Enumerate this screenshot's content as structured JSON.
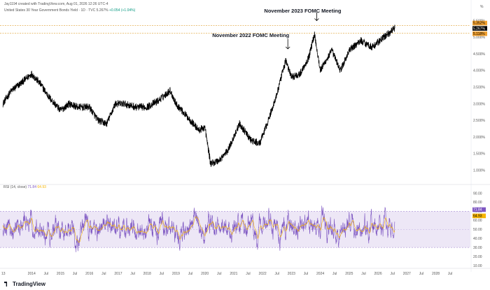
{
  "header": {
    "credit": "Jay1194 created with TradingView.com, Aug 01, 2026 12:26 UTC-4",
    "symbol_line": "United States 30 Year Government Bonds Yield · 1D · TVC",
    "price": "5.267%",
    "change": "+0.054 (+1.04%)"
  },
  "branding": {
    "logo_text": "TradingView",
    "logo_icon": "tradingview-logo-icon"
  },
  "colors": {
    "price_line": "#000000",
    "rsi_line": "#7e57c2",
    "rsi_ma_line": "#f7b500",
    "rsi_band": "#ede7f6",
    "last_price_label": "#000000",
    "level_label_orange": "#f0a030",
    "dashed_level": "#e0a030"
  },
  "chart_data": [
    {
      "type": "line",
      "title": "",
      "annotations": [
        {
          "text": "November 2023 FOMC Meeting",
          "x": "2023-11-01"
        },
        {
          "text": "November 2022 FOMC Meeting",
          "x": "2022-11-01"
        }
      ],
      "y_axis_unit": "%",
      "y_ticks": [
        "5.500%",
        "5.000%",
        "4.500%",
        "4.000%",
        "3.500%",
        "3.000%",
        "2.500%",
        "2.000%",
        "1.500%",
        "1.000%"
      ],
      "ylim": [
        0.7,
        5.7
      ],
      "levels": [
        {
          "label": "5.267%",
          "value": 5.267,
          "style": "last-price"
        },
        {
          "label": "5.352%",
          "value": 5.352,
          "style": "dashed"
        },
        {
          "label": "5.118%",
          "value": 5.118,
          "style": "dashed"
        }
      ],
      "series": [
        {
          "x": [
            2013.0,
            2013.3,
            2013.6,
            2014.0,
            2014.3,
            2014.6,
            2015.0,
            2015.3,
            2015.6,
            2016.0,
            2016.3,
            2016.6,
            2016.9,
            2017.2,
            2017.6,
            2018.0,
            2018.4,
            2018.8,
            2019.0,
            2019.4,
            2019.8,
            2020.0,
            2020.2,
            2020.5,
            2020.8,
            2021.2,
            2021.6,
            2021.9,
            2022.2,
            2022.5,
            2022.8,
            2023.0,
            2023.3,
            2023.6,
            2023.8,
            2024.0,
            2024.4,
            2024.7,
            2025.0,
            2025.4,
            2025.8,
            2026.2,
            2026.58
          ],
          "y": [
            3.0,
            3.4,
            3.6,
            3.9,
            3.6,
            3.2,
            2.8,
            3.0,
            2.9,
            2.9,
            2.5,
            2.4,
            3.0,
            3.0,
            2.9,
            2.9,
            3.1,
            3.4,
            3.0,
            2.6,
            2.2,
            2.3,
            1.2,
            1.3,
            1.6,
            2.4,
            1.9,
            1.8,
            2.5,
            3.3,
            4.3,
            3.8,
            3.9,
            4.4,
            5.1,
            4.0,
            4.6,
            4.0,
            4.6,
            4.9,
            4.7,
            5.0,
            5.267
          ]
        }
      ]
    },
    {
      "type": "line",
      "title": "",
      "indicator_label": "RSI (14, close)",
      "rsi_value": "71.84",
      "rsi_ma_value": "64.93",
      "y_ticks": [
        "90.00",
        "80.00",
        "70.00",
        "60.00",
        "50.00",
        "40.00",
        "30.00",
        "20.00",
        "10.00"
      ],
      "ylim": [
        10,
        95
      ],
      "band": [
        30,
        70
      ]
    }
  ],
  "x_axis": {
    "ticks": [
      "13",
      "2014",
      "Jul",
      "2015",
      "Jul",
      "2016",
      "Jul",
      "2017",
      "Jul",
      "2018",
      "Jul",
      "2019",
      "Jul",
      "2020",
      "Jul",
      "2021",
      "Jul",
      "2022",
      "Jul",
      "2023",
      "Jul",
      "2024",
      "Jul",
      "2025",
      "Jul",
      "2026",
      "Jul",
      "2027",
      "Jul",
      "2028",
      "Jul"
    ]
  }
}
